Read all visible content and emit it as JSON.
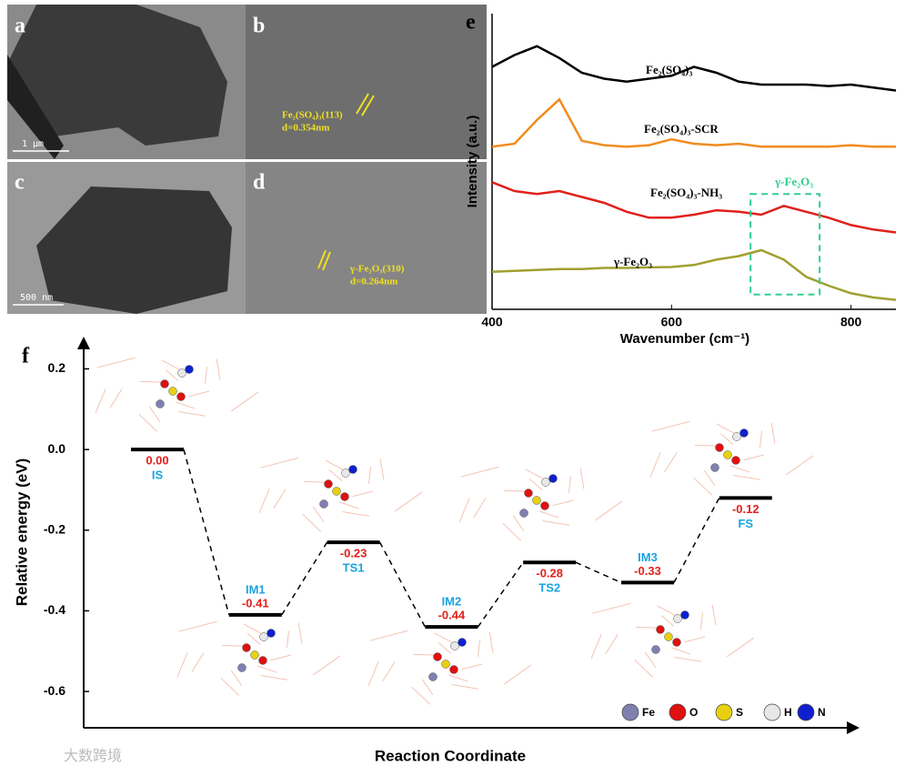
{
  "micrographs": [
    {
      "label": "a",
      "scale_bar": "1 μm"
    },
    {
      "label": "b",
      "annotation": [
        "Fe₂(SO₄)₃(113)",
        "d=0.354nm"
      ]
    },
    {
      "label": "c",
      "scale_bar": "500 nm"
    },
    {
      "label": "d",
      "annotation": [
        "γ-Fe₂O₃(310)",
        "d=0.264nm"
      ]
    }
  ],
  "chart_data": [
    {
      "type": "line",
      "panel_label": "e",
      "x_label": "Wavenumber (cm⁻¹)",
      "y_label": "Intensity (a.u.)",
      "x": [
        400,
        425,
        450,
        475,
        500,
        525,
        550,
        575,
        600,
        625,
        650,
        675,
        700,
        725,
        750,
        775,
        800,
        825,
        850
      ],
      "xlim": [
        400,
        850
      ],
      "xticks": [
        400,
        600,
        800
      ],
      "ylim": [
        0,
        100
      ],
      "series": [
        {
          "name": "Fe₂(SO₄)₃",
          "color": "#000000",
          "values": [
            82,
            86,
            89,
            85,
            80,
            78,
            77,
            78,
            79,
            82,
            80,
            77,
            76,
            76,
            76,
            75.5,
            76,
            75,
            74
          ]
        },
        {
          "name": "Fe₂(SO₄)₃-SCR",
          "color": "#f08c1e",
          "values": [
            55,
            56,
            64,
            71,
            57,
            55.5,
            55,
            55.5,
            57.5,
            56,
            55.5,
            56,
            55,
            55,
            55,
            55,
            55.5,
            55,
            55
          ]
        },
        {
          "name": "Fe₂(SO₄)₃-NH₃",
          "color": "#e0201b",
          "values": [
            43,
            40,
            39,
            40,
            38,
            36,
            33,
            31,
            31,
            32,
            33.5,
            33,
            32,
            35,
            33,
            31,
            28.5,
            27,
            26
          ]
        },
        {
          "name": "γ-Fe₂O₃",
          "color": "#a0a030",
          "values": [
            12.7,
            13,
            13.3,
            13.6,
            13.6,
            14,
            14,
            14.2,
            14.3,
            15,
            16.8,
            18,
            20,
            16.8,
            11,
            8,
            5.4,
            4,
            3.2
          ]
        }
      ],
      "highlight": {
        "label": "γ-Fe₂O₃",
        "color": "#2ecf8f",
        "x": [
          688,
          765
        ],
        "y": [
          5,
          39
        ]
      }
    },
    {
      "type": "energy_level",
      "panel_label": "f",
      "x_label": "Reaction Coordinate",
      "y_label": "Relative energy (eV)",
      "categories": [
        "IS",
        "IM1",
        "TS1",
        "IM2",
        "TS2",
        "IM3",
        "FS"
      ],
      "values": [
        0,
        -0.41,
        -0.23,
        -0.44,
        -0.28,
        -0.33,
        -0.12
      ],
      "value_labels": [
        "0.00",
        "-0.41",
        "-0.23",
        "-0.44",
        "-0.28",
        "-0.33",
        "-0.12"
      ],
      "ylim": [
        -0.69,
        0.28
      ],
      "yticks": [
        {
          "value": 0.2,
          "label": "0.2"
        },
        {
          "value": 0,
          "label": "0.0"
        },
        -0.2,
        -0.4,
        -0.6
      ],
      "value_color": "#e3201b",
      "category_color": "#1aa3e0"
    }
  ],
  "atoms": [
    {
      "name": "Fe",
      "color": "#8080b0"
    },
    {
      "name": "O",
      "color": "#e01010"
    },
    {
      "name": "S",
      "color": "#e8d010"
    },
    {
      "name": "H",
      "color": "#e8e8e8"
    },
    {
      "name": "N",
      "color": "#1020d0"
    }
  ],
  "watermark": "大数跨境"
}
